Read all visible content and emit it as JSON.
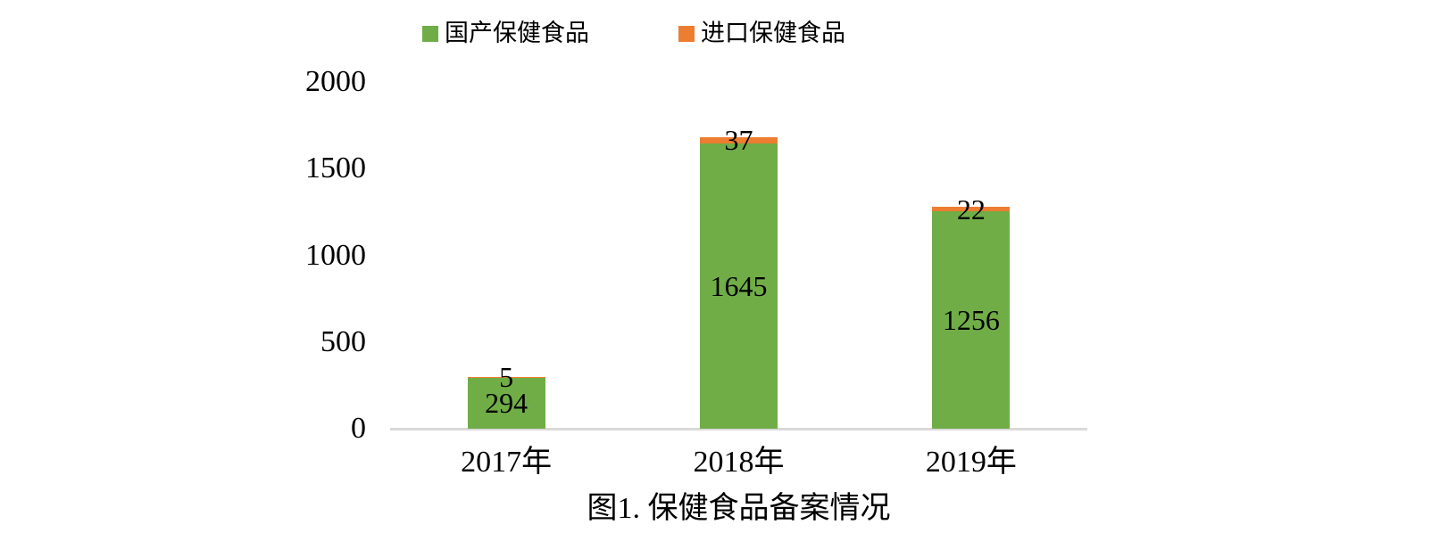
{
  "chart_data": {
    "type": "bar",
    "stacked": true,
    "title": "图1. 保健食品备案情况",
    "xlabel": "",
    "ylabel": "",
    "categories": [
      "2017年",
      "2018年",
      "2019年"
    ],
    "series": [
      {
        "name": "国产保健食品",
        "color": "#70AD47",
        "values": [
          294,
          1645,
          1256
        ]
      },
      {
        "name": "进口保健食品",
        "color": "#ED7D31",
        "values": [
          5,
          37,
          22
        ]
      }
    ],
    "ylim": [
      0,
      2000
    ],
    "yticks": [
      "0",
      "500",
      "1000",
      "1500",
      "2000"
    ],
    "grid": false,
    "legend_position": "top",
    "axis_line_color": "#D9D9D9",
    "background": "#FFFFFF"
  }
}
